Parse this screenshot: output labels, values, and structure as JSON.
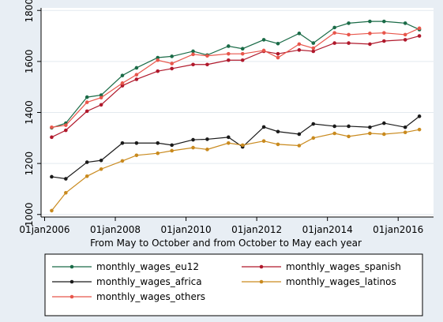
{
  "chart_data": {
    "type": "line",
    "title": "",
    "xlabel": "From May to October and from October to May each year",
    "ylabel": "",
    "xlim": [
      2005.9,
      2017.0
    ],
    "ylim": [
      990,
      1810
    ],
    "x_ticks": [
      2006,
      2008,
      2010,
      2012,
      2014,
      2016
    ],
    "x_tick_labels": [
      "01jan2006",
      "01jan2008",
      "01jan2010",
      "01jan2012",
      "01jan2014",
      "01jan2016"
    ],
    "y_ticks": [
      1000,
      1200,
      1400,
      1600,
      1800
    ],
    "y_tick_labels": [
      "1000",
      "1200",
      "1400",
      "1600",
      "1800"
    ],
    "grid": "horizontal",
    "legend": "bottom",
    "x": [
      2006.2,
      2006.6,
      2007.2,
      2007.6,
      2008.2,
      2008.6,
      2009.2,
      2009.6,
      2010.2,
      2010.6,
      2011.2,
      2011.6,
      2012.2,
      2012.6,
      2013.2,
      2013.6,
      2014.2,
      2014.6,
      2015.2,
      2015.6,
      2016.2,
      2016.6
    ],
    "series": [
      {
        "name": "monthly_wages_eu12",
        "color": "#1a6b47",
        "values": [
          1340,
          1358,
          1460,
          1468,
          1545,
          1575,
          1615,
          1620,
          1640,
          1625,
          1660,
          1650,
          1685,
          1670,
          1710,
          1672,
          1733,
          1750,
          1757,
          1757,
          1750,
          1725
        ]
      },
      {
        "name": "monthly_wages_spanish",
        "color": "#b0182b",
        "values": [
          1303,
          1330,
          1405,
          1430,
          1505,
          1530,
          1562,
          1572,
          1588,
          1588,
          1605,
          1605,
          1640,
          1630,
          1645,
          1640,
          1672,
          1672,
          1668,
          1680,
          1685,
          1700
        ]
      },
      {
        "name": "monthly_wages_africa",
        "color": "#1a1a1a",
        "values": [
          1148,
          1140,
          1205,
          1212,
          1280,
          1280,
          1280,
          1272,
          1293,
          1295,
          1303,
          1265,
          1343,
          1325,
          1315,
          1355,
          1346,
          1346,
          1342,
          1358,
          1342,
          1385
        ]
      },
      {
        "name": "monthly_wages_latinos",
        "color": "#c98a1e",
        "values": [
          1015,
          1085,
          1150,
          1178,
          1210,
          1232,
          1240,
          1250,
          1262,
          1255,
          1280,
          1272,
          1288,
          1275,
          1270,
          1300,
          1318,
          1306,
          1318,
          1315,
          1322,
          1333
        ]
      },
      {
        "name": "monthly_wages_others",
        "color": "#e8564b",
        "values": [
          1342,
          1350,
          1440,
          1458,
          1515,
          1548,
          1605,
          1592,
          1628,
          1622,
          1630,
          1630,
          1643,
          1615,
          1668,
          1652,
          1712,
          1705,
          1710,
          1712,
          1705,
          1730
        ]
      }
    ]
  }
}
